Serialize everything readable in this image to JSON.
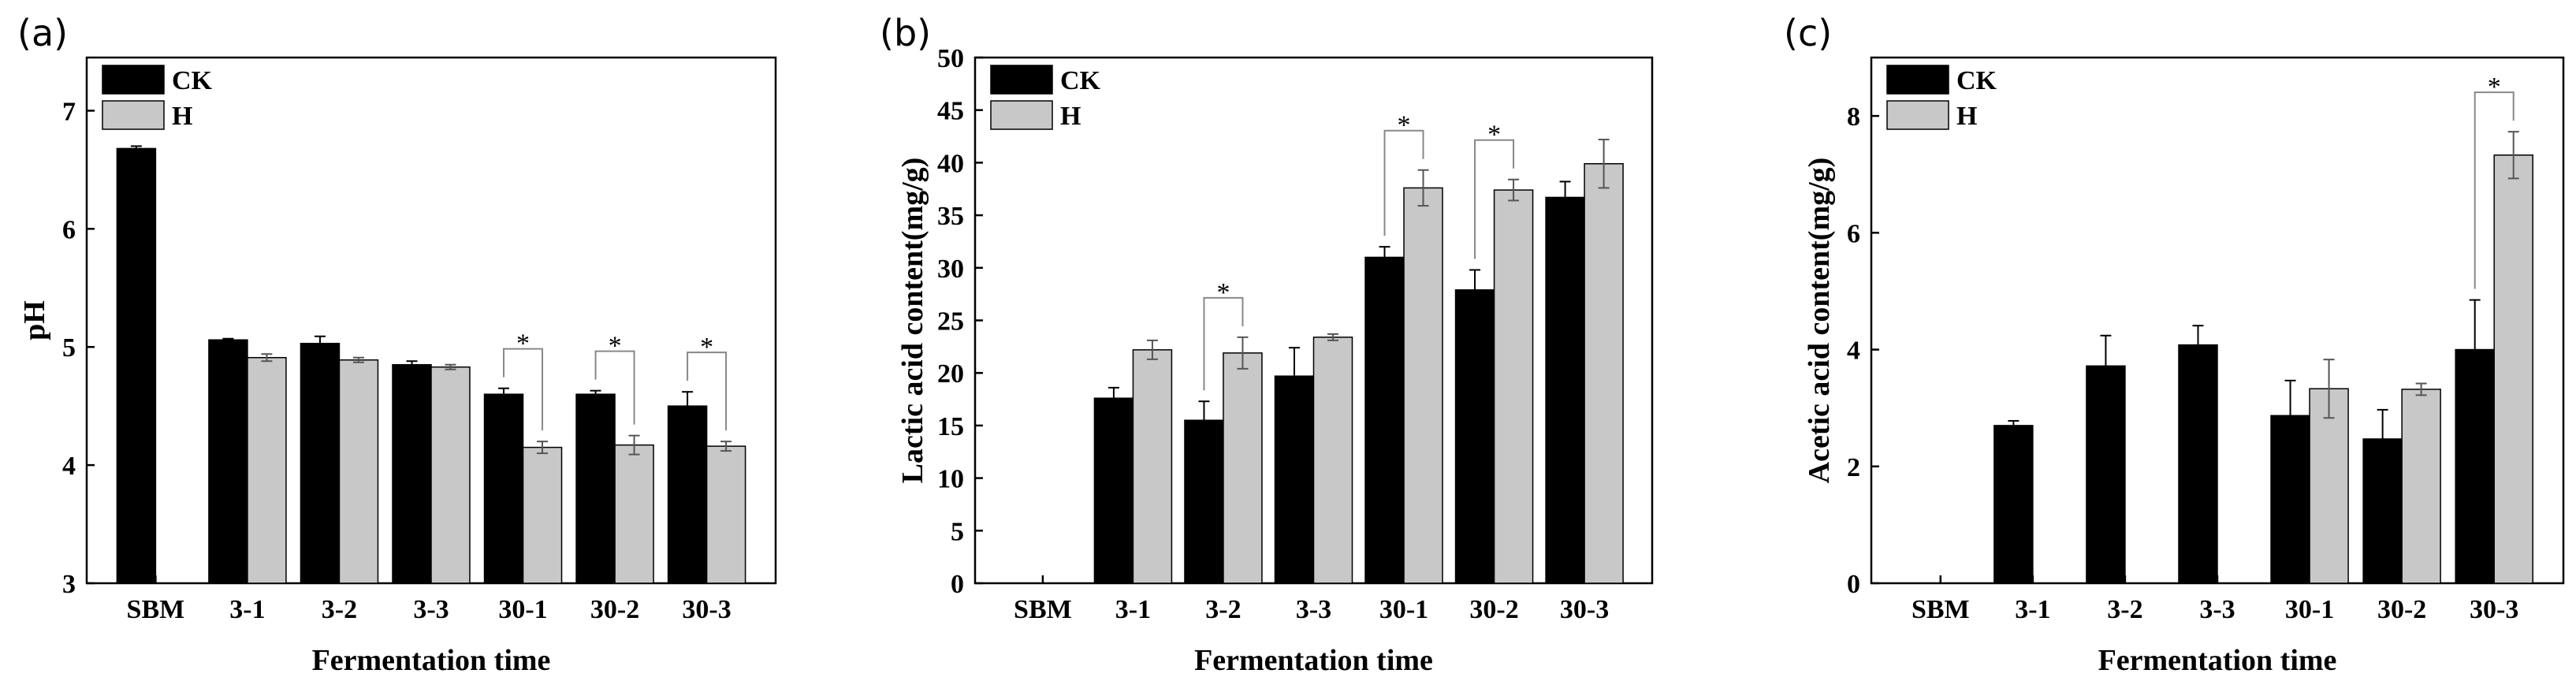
{
  "chart_data": [
    {
      "type": "bar",
      "panel_label": "(a)",
      "categories": [
        "SBM",
        "3-1",
        "3-2",
        "3-3",
        "30-1",
        "30-2",
        "30-3"
      ],
      "series": [
        {
          "name": "CK",
          "color": "#000000",
          "values": [
            6.68,
            5.06,
            5.03,
            4.85,
            4.6,
            4.6,
            4.5
          ],
          "errors": [
            0.02,
            0.01,
            0.06,
            0.03,
            0.05,
            0.03,
            0.12
          ]
        },
        {
          "name": "H",
          "color": "#c8c8c8",
          "values": [
            null,
            4.91,
            4.89,
            4.83,
            4.15,
            4.17,
            4.16
          ],
          "errors": [
            0,
            0.03,
            0.02,
            0.02,
            0.05,
            0.08,
            0.04
          ]
        }
      ],
      "significance": [
        "",
        "",
        "",
        "",
        "*",
        "*",
        "*"
      ],
      "xlabel": "Fermentation time",
      "ylabel": "pH",
      "ylim": [
        3,
        7.45
      ],
      "yticks": [
        3,
        4,
        5,
        6,
        7
      ],
      "legend_position": "top-left"
    },
    {
      "type": "bar",
      "panel_label": "(b)",
      "categories": [
        "SBM",
        "3-1",
        "3-2",
        "3-3",
        "30-1",
        "30-2",
        "30-3"
      ],
      "series": [
        {
          "name": "CK",
          "color": "#000000",
          "values": [
            null,
            17.6,
            15.5,
            19.7,
            31.0,
            27.9,
            36.7
          ],
          "errors": [
            0,
            1.0,
            1.8,
            2.7,
            1.0,
            1.9,
            1.5
          ]
        },
        {
          "name": "H",
          "color": "#c8c8c8",
          "values": [
            null,
            22.2,
            21.9,
            23.4,
            37.6,
            37.4,
            39.9
          ],
          "errors": [
            0,
            0.9,
            1.5,
            0.3,
            1.7,
            1.0,
            2.3
          ]
        }
      ],
      "significance": [
        "",
        "",
        "*",
        "",
        "*",
        "*",
        ""
      ],
      "xlabel": "Fermentation time",
      "ylabel": "Lactic acid content(mg/g)",
      "ylim": [
        0,
        50
      ],
      "yticks": [
        0,
        5,
        10,
        15,
        20,
        25,
        30,
        35,
        40,
        45,
        50
      ],
      "legend_position": "top-left"
    },
    {
      "type": "bar",
      "panel_label": "(c)",
      "categories": [
        "SBM",
        "3-1",
        "3-2",
        "3-3",
        "30-1",
        "30-2",
        "30-3"
      ],
      "series": [
        {
          "name": "CK",
          "color": "#000000",
          "values": [
            null,
            2.7,
            3.72,
            4.08,
            2.87,
            2.47,
            4.0
          ],
          "errors": [
            0,
            0.08,
            0.52,
            0.33,
            0.6,
            0.5,
            0.85
          ]
        },
        {
          "name": "H",
          "color": "#c8c8c8",
          "values": [
            null,
            null,
            null,
            null,
            3.33,
            3.32,
            7.33
          ],
          "errors": [
            0,
            0,
            0,
            0,
            0.5,
            0.1,
            0.4
          ]
        }
      ],
      "significance": [
        "",
        "",
        "",
        "",
        "",
        "",
        "*"
      ],
      "xlabel": "Fermentation time",
      "ylabel": "Acetic acid content(mg/g)",
      "ylim": [
        0,
        9
      ],
      "yticks": [
        0,
        2,
        4,
        6,
        8
      ],
      "legend_position": "top-left"
    }
  ]
}
